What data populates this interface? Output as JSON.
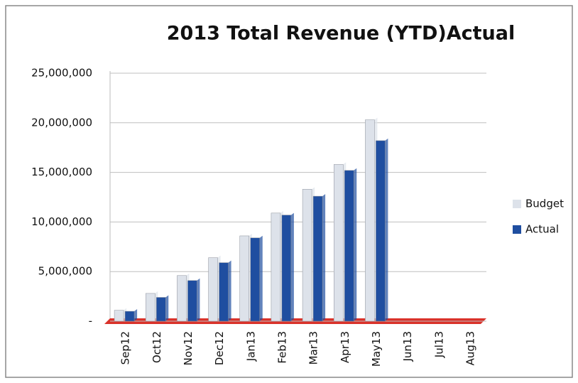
{
  "chart_data": {
    "type": "bar",
    "title": "2013 Total Revenue (YTD)Actual",
    "categories": [
      "Sep12",
      "Oct12",
      "Nov12",
      "Dec12",
      "Jan13",
      "Feb13",
      "Mar13",
      "Apr13",
      "May13",
      "Jun13",
      "Jul13",
      "Aug13"
    ],
    "series": [
      {
        "name": "Budget",
        "color": "#dde2ea",
        "values": [
          1100000,
          2800000,
          4600000,
          6400000,
          8600000,
          10900000,
          13300000,
          15800000,
          20300000,
          null,
          null,
          null
        ]
      },
      {
        "name": "Actual",
        "color": "#1f4ea0",
        "values": [
          1000000,
          2400000,
          4100000,
          5900000,
          8400000,
          10700000,
          12600000,
          15200000,
          18200000,
          null,
          null,
          null
        ]
      }
    ],
    "ylim": [
      0,
      25000000
    ],
    "yticks": [
      {
        "value": 0,
        "label": "-"
      },
      {
        "value": 5000000,
        "label": "5,000,000"
      },
      {
        "value": 10000000,
        "label": "10,000,000"
      },
      {
        "value": 15000000,
        "label": "15,000,000"
      },
      {
        "value": 20000000,
        "label": "20,000,000"
      },
      {
        "value": 25000000,
        "label": "25,000,000"
      }
    ],
    "grid": true
  }
}
